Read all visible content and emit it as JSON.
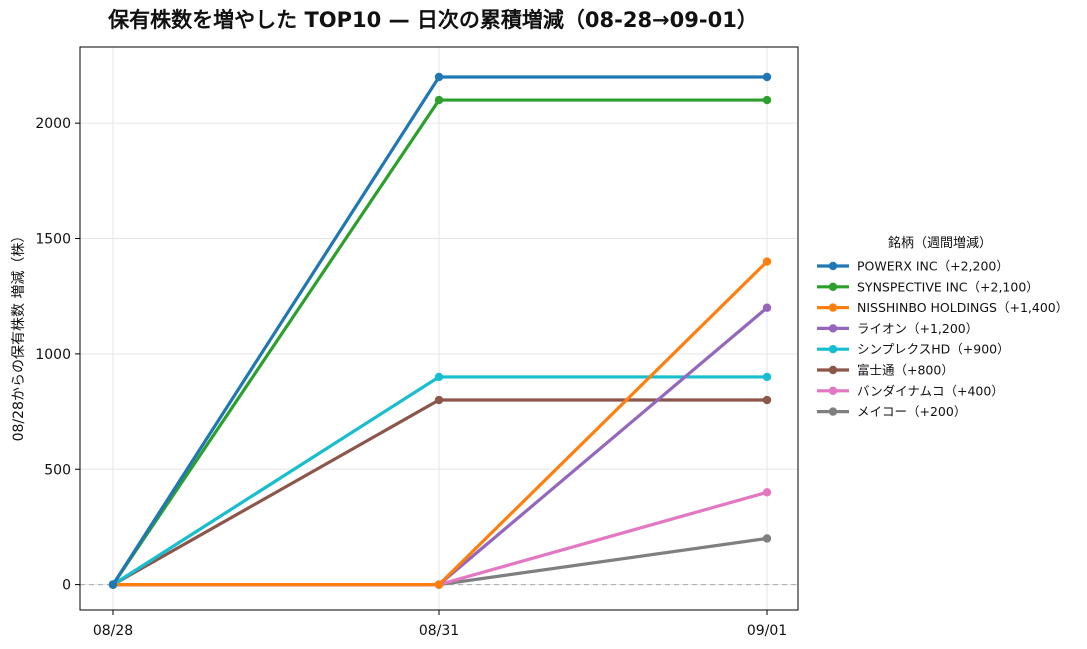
{
  "chart_data": {
    "type": "line",
    "title": "保有株数を増やした TOP10 — 日次の累積増減（08-28→09-01）",
    "xlabel": "",
    "ylabel": "08/28からの保有株数 増減（株）",
    "categories": [
      "08/28",
      "08/31",
      "09/01"
    ],
    "ylim": [
      -110,
      2330
    ],
    "yticks": [
      0,
      500,
      1000,
      1500,
      2000
    ],
    "grid": true,
    "zero_line": {
      "style": "dashed",
      "color": "#aaaaaa"
    },
    "legend": {
      "title": "銘柄（週間増減）",
      "placement": "right"
    },
    "series": [
      {
        "name": "POWERX INC（+2,200）",
        "color": "#1f77b4",
        "values": [
          0,
          2200,
          2200
        ]
      },
      {
        "name": "SYNSPECTIVE INC（+2,100）",
        "color": "#2ca02c",
        "values": [
          0,
          2100,
          2100
        ]
      },
      {
        "name": "NISSHINBO HOLDINGS（+1,400）",
        "color": "#ff7f0e",
        "values": [
          0,
          0,
          1400
        ]
      },
      {
        "name": "ライオン（+1,200）",
        "color": "#9467bd",
        "values": [
          0,
          0,
          1200
        ]
      },
      {
        "name": "シンプレクスHD（+900）",
        "color": "#17becf",
        "values": [
          0,
          900,
          900
        ]
      },
      {
        "name": "富士通（+800）",
        "color": "#8c564b",
        "values": [
          0,
          800,
          800
        ]
      },
      {
        "name": "バンダイナムコ（+400）",
        "color": "#e377c2",
        "values": [
          0,
          0,
          400
        ]
      },
      {
        "name": "メイコー（+200）",
        "color": "#7f7f7f",
        "values": [
          0,
          0,
          200
        ]
      }
    ]
  }
}
